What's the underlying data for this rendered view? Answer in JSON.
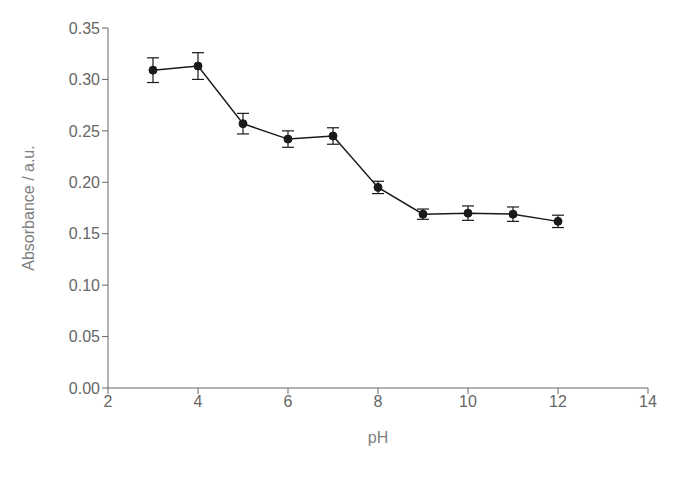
{
  "chart_data": {
    "type": "line",
    "xlabel": "pH",
    "ylabel": "Absorbance / a.u.",
    "x": [
      3,
      4,
      5,
      6,
      7,
      8,
      9,
      10,
      11,
      12
    ],
    "values": [
      0.309,
      0.313,
      0.257,
      0.242,
      0.245,
      0.195,
      0.169,
      0.17,
      0.169,
      0.162
    ],
    "yerr": [
      0.012,
      0.013,
      0.01,
      0.008,
      0.008,
      0.006,
      0.005,
      0.007,
      0.007,
      0.006
    ],
    "color": "#1a1a1a",
    "marker": "circle",
    "xlim": [
      2,
      14
    ],
    "ylim": [
      0.0,
      0.35
    ],
    "xticks": [
      2,
      4,
      6,
      8,
      10,
      12,
      14
    ],
    "yticks": [
      {
        "value": 0.0,
        "label": "0.00"
      },
      0.05,
      {
        "value": 0.1,
        "label": "0.10"
      },
      0.15,
      {
        "value": 0.2,
        "label": "0.20"
      },
      0.25,
      {
        "value": 0.3,
        "label": "0.30"
      },
      0.35
    ],
    "grid": false
  }
}
